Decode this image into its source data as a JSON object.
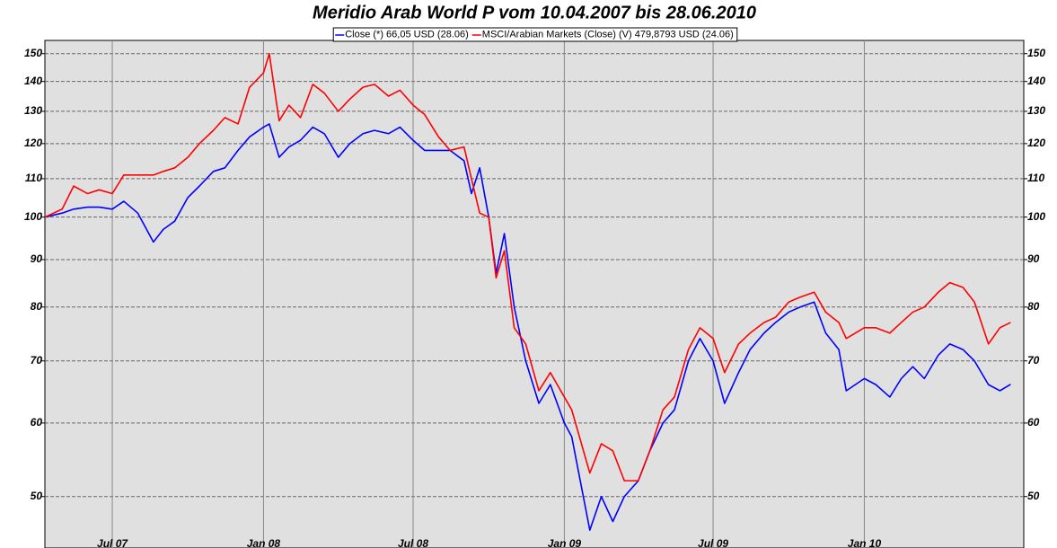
{
  "chart_data": {
    "type": "line",
    "title": "Meridio Arab World P vom 10.04.2007 bis 28.06.2010",
    "log_scale": true,
    "grid": true,
    "legend": "top",
    "xlim": [
      "2007-04-10",
      "2010-07-14"
    ],
    "xticks": [
      {
        "value": "2007-07-01",
        "label": "Jul 07"
      },
      {
        "value": "2008-01-01",
        "label": "Jan 08"
      },
      {
        "value": "2008-07-01",
        "label": "Jul 08"
      },
      {
        "value": "2009-01-01",
        "label": "Jan 09"
      },
      {
        "value": "2009-07-01",
        "label": "Jul 09"
      },
      {
        "value": "2010-01-01",
        "label": "Jan 10"
      }
    ],
    "ylim": [
      45,
      155
    ],
    "yticks": [
      50,
      60,
      70,
      80,
      90,
      100,
      110,
      120,
      130,
      140,
      150
    ],
    "x": [
      "2007-04-10",
      "2007-05-01",
      "2007-05-15",
      "2007-06-01",
      "2007-06-15",
      "2007-07-01",
      "2007-07-15",
      "2007-08-01",
      "2007-08-20",
      "2007-09-01",
      "2007-09-15",
      "2007-10-01",
      "2007-10-15",
      "2007-11-01",
      "2007-11-15",
      "2007-12-01",
      "2007-12-15",
      "2008-01-01",
      "2008-01-08",
      "2008-01-20",
      "2008-02-01",
      "2008-02-15",
      "2008-03-01",
      "2008-03-15",
      "2008-04-01",
      "2008-04-15",
      "2008-05-01",
      "2008-05-15",
      "2008-06-01",
      "2008-06-15",
      "2008-07-01",
      "2008-07-15",
      "2008-08-01",
      "2008-08-15",
      "2008-09-01",
      "2008-09-10",
      "2008-09-20",
      "2008-10-01",
      "2008-10-10",
      "2008-10-20",
      "2008-11-01",
      "2008-11-15",
      "2008-12-01",
      "2008-12-15",
      "2009-01-01",
      "2009-01-10",
      "2009-02-01",
      "2009-02-15",
      "2009-03-01",
      "2009-03-15",
      "2009-04-01",
      "2009-04-15",
      "2009-05-01",
      "2009-05-15",
      "2009-06-01",
      "2009-06-15",
      "2009-07-01",
      "2009-07-15",
      "2009-08-01",
      "2009-08-15",
      "2009-09-01",
      "2009-09-15",
      "2009-10-01",
      "2009-10-15",
      "2009-11-01",
      "2009-11-15",
      "2009-12-01",
      "2009-12-10",
      "2010-01-01",
      "2010-01-15",
      "2010-02-01",
      "2010-02-15",
      "2010-03-01",
      "2010-03-15",
      "2010-04-01",
      "2010-04-15",
      "2010-05-01",
      "2010-05-15",
      "2010-06-01",
      "2010-06-15",
      "2010-06-28"
    ],
    "series": [
      {
        "name": "Close (*) 66,05 USD (28.06)",
        "color": "#0000ff",
        "values": [
          100,
          101,
          102,
          102.5,
          102.5,
          102,
          104,
          101,
          94,
          97,
          99,
          105,
          108,
          112,
          113,
          118,
          122,
          125,
          126,
          116,
          119,
          121,
          125,
          123,
          116,
          120,
          123,
          124,
          123,
          125,
          121,
          118,
          118,
          118,
          115,
          106,
          113,
          100,
          87,
          96,
          80,
          70,
          63,
          66,
          60,
          58,
          46,
          50,
          47,
          50,
          52,
          56,
          60,
          62,
          70,
          74,
          70,
          63,
          68,
          72,
          75,
          77,
          79,
          80,
          81,
          75,
          72,
          65,
          67,
          66,
          64,
          67,
          69,
          67,
          71,
          73,
          72,
          70,
          66,
          65,
          66.05
        ]
      },
      {
        "name": "MSCI/Arabian Markets (Close) (V) 479,8793 USD (24.06)",
        "color": "#ff0000",
        "values": [
          100,
          102,
          108,
          106,
          107,
          106,
          111,
          111,
          111,
          112,
          113,
          116,
          120,
          124,
          128,
          126,
          138,
          143,
          150,
          127,
          132,
          128,
          139,
          136,
          130,
          134,
          138,
          139,
          135,
          137,
          132,
          129,
          122,
          118,
          119,
          110,
          101,
          100,
          86,
          92,
          76,
          73,
          65,
          68,
          64,
          62,
          53,
          57,
          56,
          52,
          52,
          56,
          62,
          64,
          72,
          76,
          74,
          68,
          73,
          75,
          77,
          78,
          81,
          82,
          83,
          79,
          77,
          74,
          76,
          76,
          75,
          77,
          79,
          80,
          83,
          85,
          84,
          81,
          73,
          76,
          77
        ]
      }
    ]
  }
}
